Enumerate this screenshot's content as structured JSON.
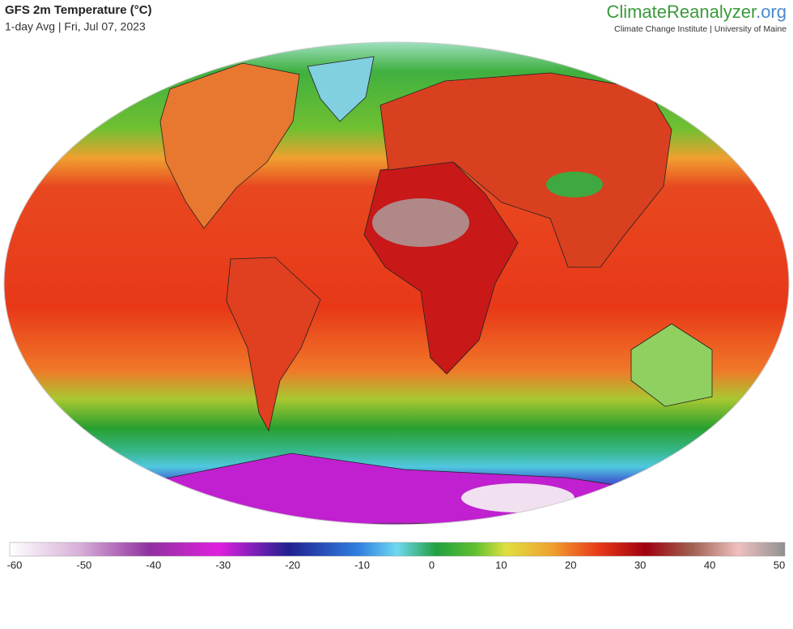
{
  "header": {
    "title": "GFS 2m Temperature (°C)",
    "subtitle": "1-day Avg | Fri, Jul 07, 2023"
  },
  "brand": {
    "name": "ClimateReanalyzer",
    "suffix": ".org",
    "tagline": "Climate Change Institute | University of Maine"
  },
  "colorbar": {
    "xlim": [
      -60,
      50
    ],
    "ticks": [
      -60,
      -50,
      -40,
      -30,
      -20,
      -10,
      0,
      10,
      20,
      30,
      40,
      50
    ]
  }
}
